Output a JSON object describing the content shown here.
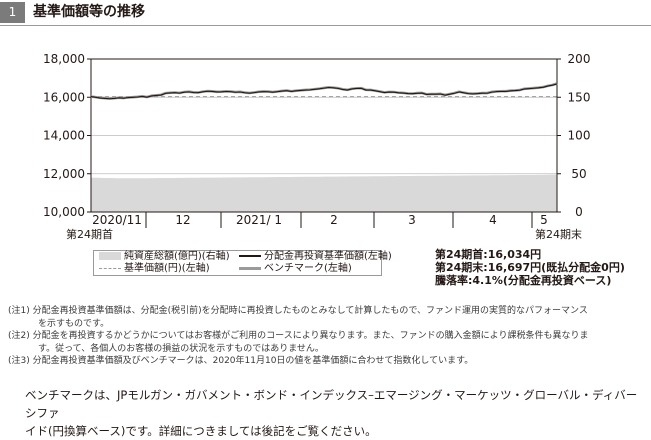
{
  "section": {
    "number": "1",
    "title": "基準価額等の推移"
  },
  "chart_data": {
    "type": "line",
    "left_axis": {
      "ticks": [
        "18,000",
        "16,000",
        "14,000",
        "12,000",
        "10,000"
      ],
      "ylim": [
        10000,
        18000
      ]
    },
    "right_axis": {
      "ticks": [
        "200",
        "150",
        "100",
        "50",
        "0"
      ],
      "ylim": [
        0,
        200
      ]
    },
    "x_tick_labels": [
      "2020/11",
      "12",
      "2021/ 1",
      "2",
      "3",
      "4",
      "5"
    ],
    "period_start_label": "第24期首",
    "period_end_label": "第24期末",
    "x": [
      0,
      1,
      2,
      3,
      4,
      5,
      6,
      7,
      8,
      9,
      10,
      11,
      12,
      13,
      14,
      15,
      16,
      17,
      18,
      19,
      20,
      21,
      22,
      23,
      24,
      25,
      26,
      27,
      28,
      29,
      30,
      31,
      32,
      33,
      34,
      35,
      36,
      37,
      38,
      39,
      40,
      41,
      42,
      43,
      44,
      45,
      46,
      47,
      48,
      49,
      50,
      51,
      52,
      53,
      54,
      55,
      56,
      57,
      58,
      59,
      60,
      61,
      62,
      63,
      64,
      65,
      66,
      67,
      68,
      69,
      70,
      71,
      72,
      73,
      74,
      75,
      76,
      77,
      78,
      79,
      80,
      81,
      82,
      83,
      84,
      85,
      86,
      87,
      88,
      89,
      90,
      91,
      92,
      93,
      94,
      95,
      96,
      97,
      98,
      99,
      100
    ],
    "reference_level": 16034,
    "series": [
      {
        "name": "純資産総額(億円)(右軸)",
        "axis": "right",
        "style": "area",
        "color": "#d9d9d9",
        "values": [
          45,
          44.8,
          44.6,
          44.5,
          44.4,
          44.3,
          44.2,
          44.2,
          44.1,
          44.1,
          44.1,
          44.2,
          44.2,
          44.3,
          44.3,
          44.4,
          44.4,
          44.5,
          44.5,
          44.6,
          44.6,
          44.7,
          44.8,
          44.8,
          44.9,
          44.9,
          45,
          45,
          45.1,
          45.1,
          45.2,
          45.2,
          45.3,
          45.3,
          45.4,
          45.4,
          45.5,
          45.5,
          45.6,
          45.6,
          45.7,
          45.7,
          45.8,
          45.8,
          45.9,
          45.9,
          46,
          46,
          46.1,
          46.1,
          46.2,
          46.2,
          46.3,
          46.3,
          46.4,
          46.4,
          46.5,
          46.5,
          46.6,
          46.6,
          46.7,
          46.7,
          46.8,
          46.8,
          46.9,
          46.9,
          47,
          47,
          47.1,
          47.1,
          47.2,
          47.2,
          47.3,
          47.3,
          47.4,
          47.4,
          47.5,
          47.5,
          47.6,
          47.6,
          47.7,
          47.7,
          47.8,
          47.8,
          47.9,
          47.9,
          48,
          48,
          48.1,
          48.1,
          48.2,
          48.2,
          48.3,
          48.3,
          48.4,
          48.4,
          48.5,
          48.6,
          48.7,
          48.8,
          48.9
        ]
      },
      {
        "name": "分配金再投資基準価額(左軸)",
        "axis": "left",
        "style": "line",
        "color": "#231815",
        "values": [
          16034,
          15996,
          15960,
          15940,
          15921,
          15939,
          15968,
          15950,
          15982,
          15996,
          16013,
          16040,
          16002,
          16070,
          16093,
          16115,
          16205,
          16225,
          16239,
          16215,
          16264,
          16281,
          16247,
          16240,
          16284,
          16314,
          16302,
          16276,
          16283,
          16300,
          16291,
          16262,
          16274,
          16235,
          16213,
          16241,
          16278,
          16293,
          16288,
          16264,
          16290,
          16322,
          16343,
          16303,
          16335,
          16355,
          16374,
          16386,
          16415,
          16441,
          16478,
          16510,
          16493,
          16465,
          16407,
          16377,
          16435,
          16461,
          16466,
          16376,
          16374,
          16336,
          16291,
          16244,
          16270,
          16264,
          16232,
          16219,
          16191,
          16185,
          16208,
          16218,
          16147,
          16159,
          16159,
          16169,
          16110,
          16160,
          16210,
          16276,
          16233,
          16190,
          16176,
          16191,
          16213,
          16209,
          16268,
          16295,
          16303,
          16305,
          16335,
          16347,
          16368,
          16433,
          16450,
          16471,
          16492,
          16521,
          16584,
          16630,
          16697
        ]
      },
      {
        "name": "ベンチマーク(左軸)",
        "axis": "left",
        "style": "line",
        "color": "#9a9a9a",
        "values": [
          16034,
          16006,
          15970,
          15950,
          15931,
          15949,
          15978,
          15960,
          15992,
          16006,
          16023,
          16050,
          16012,
          16080,
          16103,
          16125,
          16215,
          16235,
          16249,
          16225,
          16274,
          16291,
          16257,
          16250,
          16294,
          16324,
          16312,
          16286,
          16293,
          16310,
          16301,
          16272,
          16284,
          16245,
          16223,
          16251,
          16288,
          16303,
          16298,
          16274,
          16300,
          16332,
          16353,
          16313,
          16345,
          16365,
          16384,
          16396,
          16425,
          16451,
          16488,
          16520,
          16503,
          16475,
          16417,
          16387,
          16445,
          16471,
          16476,
          16386,
          16384,
          16346,
          16301,
          16254,
          16280,
          16274,
          16242,
          16229,
          16201,
          16195,
          16218,
          16228,
          16157,
          16169,
          16169,
          16179,
          16120,
          16170,
          16220,
          16286,
          16243,
          16200,
          16186,
          16201,
          16223,
          16219,
          16278,
          16305,
          16313,
          16315,
          16345,
          16357,
          16378,
          16443,
          16460,
          16481,
          16502,
          16531,
          16594,
          16640,
          16720
        ]
      }
    ],
    "legend": [
      {
        "label": "純資産総額(億円)(右軸)",
        "kind": "area",
        "color": "#d9d9d9"
      },
      {
        "label": "分配金再投資基準価額(左軸)",
        "kind": "line",
        "color": "#231815"
      },
      {
        "label": "基準価額(円)(左軸)",
        "kind": "dashed",
        "color": "#9a9a9a"
      },
      {
        "label": "ベンチマーク(左軸)",
        "kind": "line",
        "color": "#9a9a9a"
      }
    ]
  },
  "summary": {
    "line1": "第24期首:16,034円",
    "line2": "第24期末:16,697円(既払分配金0円)",
    "line3": "騰落率:4.1%(分配金再投資ベース)"
  },
  "notes": [
    "(注1) 分配金再投資基準価額は、分配金(税引前)を分配時に再投資したものとみなして計算したもので、ファンド運用の実質的なパフォーマンス",
    "を示すものです。",
    "(注2) 分配金を再投資するかどうかについてはお客様がご利用のコースにより異なります。また、ファンドの購入金額により課税条件も異なりま",
    "す。従って、各個人のお客様の損益の状況を示すものではありません。",
    "(注3) 分配金再投資基準価額及びベンチマークは、2020年11月10日の値を基準価額に合わせて指数化しています。"
  ],
  "benchmark_text": {
    "line1": "ベンチマークは、JPモルガン・ガバメント・ボンド・インデックス–エマージング・マーケッツ・グローバル・ディバーシファ",
    "line2": "イド(円換算ベース)です。詳細につきましては後記をご覧ください。"
  }
}
